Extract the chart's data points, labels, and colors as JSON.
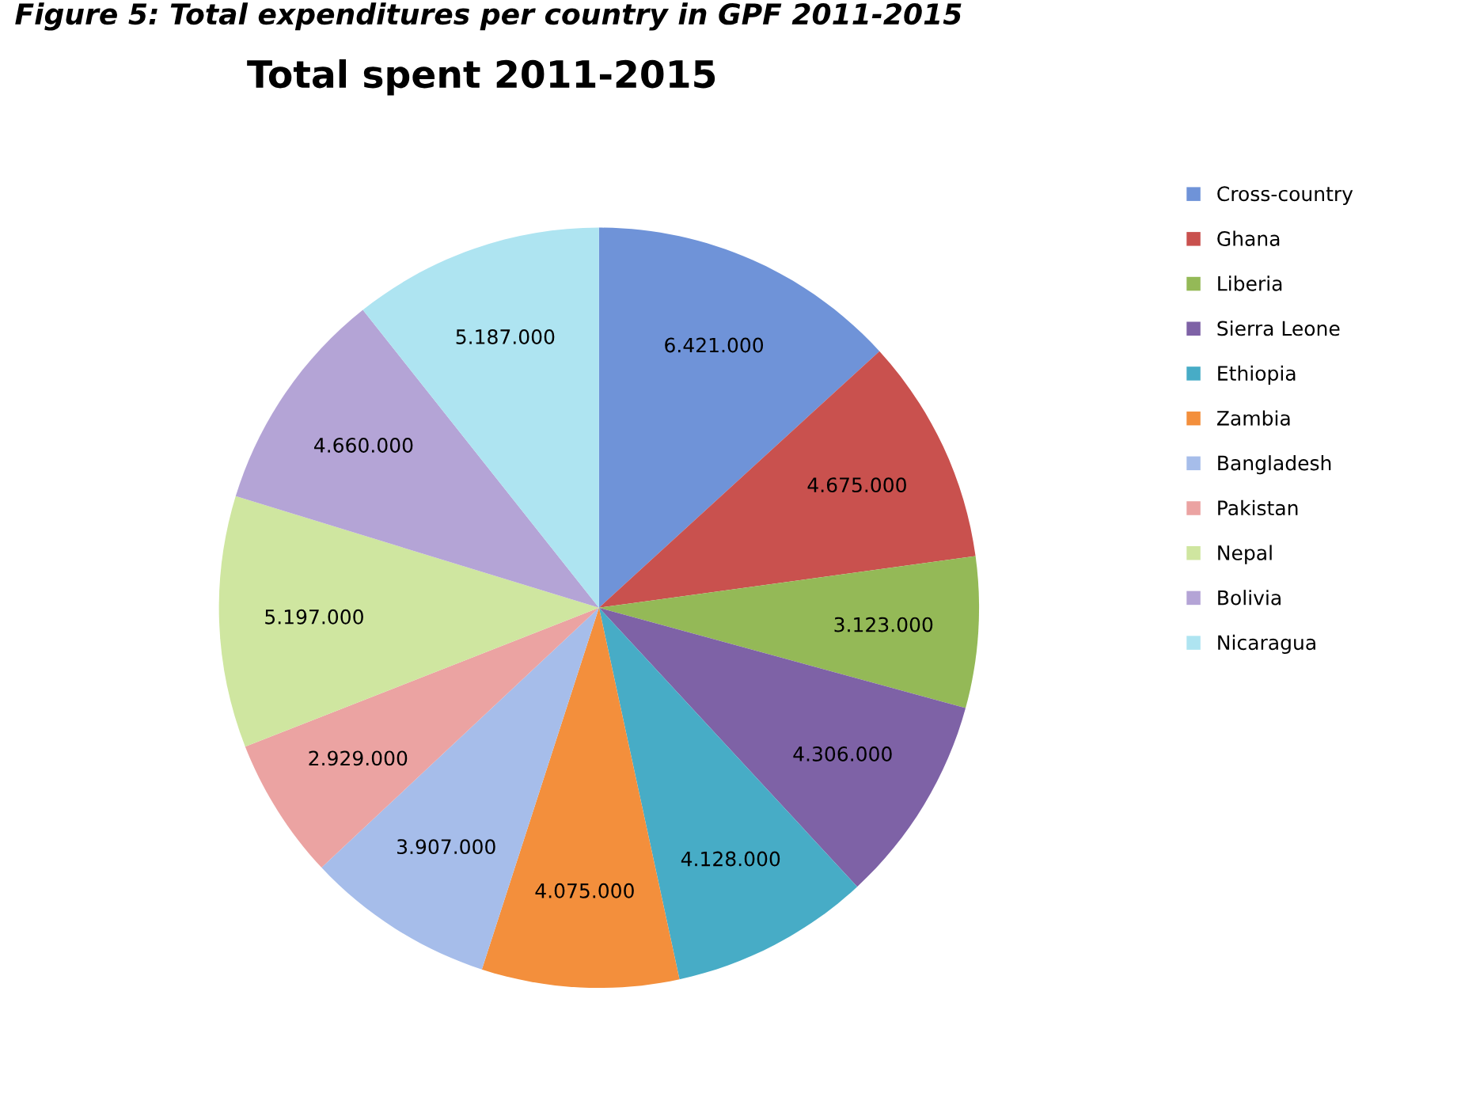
{
  "chart_data": {
    "type": "pie",
    "title": "Total spent 2011-2015",
    "annotations": [
      "Figure 5: Total expenditures per country in GPF 2011-2015"
    ],
    "categories": [
      "Cross-country",
      "Ghana",
      "Liberia",
      "Sierra Leone",
      "Ethiopia",
      "Zambia",
      "Bangladesh",
      "Pakistan",
      "Nepal",
      "Bolivia",
      "Nicaragua"
    ],
    "values": [
      6421000,
      4675000,
      3123000,
      4306000,
      4128000,
      4075000,
      3907000,
      2929000,
      5197000,
      4660000,
      5187000
    ],
    "value_labels": [
      "6.421.000",
      "4.675.000",
      "3.123.000",
      "4.306.000",
      "4.128.000",
      "4.075.000",
      "3.907.000",
      "2.929.000",
      "5.197.000",
      "4.660.000",
      "5.187.000"
    ],
    "colors": [
      "#6f93d8",
      "#c9514e",
      "#94b957",
      "#7e62a6",
      "#47acc6",
      "#f38f3c",
      "#a6bdea",
      "#eba3a2",
      "#cfe6a0",
      "#b4a4d6",
      "#aee4f1"
    ],
    "legend": "right"
  }
}
